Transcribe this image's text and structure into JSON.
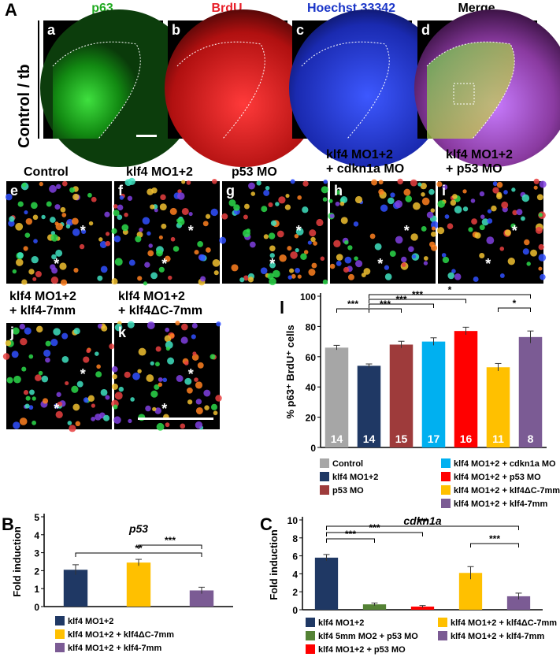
{
  "figure": {
    "panel_A_label": "A",
    "row_label": "Control / tb",
    "channels": [
      {
        "sub": "a",
        "name": "p63",
        "color": "#1faa1f"
      },
      {
        "sub": "b",
        "name": "BrdU",
        "color": "#e8202a"
      },
      {
        "sub": "c",
        "name": "Hoechst 33342",
        "color": "#1a35c8"
      },
      {
        "sub": "d",
        "name": "Merge",
        "color": "#000000"
      }
    ],
    "conditions_row1": [
      {
        "sub": "e",
        "line1": "Control",
        "line2": ""
      },
      {
        "sub": "f",
        "line1": "klf4 MO1+2",
        "line2": ""
      },
      {
        "sub": "g",
        "line1": "p53 MO",
        "line2": ""
      },
      {
        "sub": "h",
        "line1": "klf4 MO1+2",
        "line2": "+ cdkn1a MO"
      },
      {
        "sub": "i",
        "line1": "klf4 MO1+2",
        "line2": "+ p53 MO"
      }
    ],
    "conditions_row2": [
      {
        "sub": "j",
        "line1": "klf4 MO1+2",
        "line2": "+ klf4-7mm"
      },
      {
        "sub": "k",
        "line1": "klf4 MO1+2",
        "line2": "+ klf4ΔC-7mm"
      }
    ]
  },
  "chart_data": [
    {
      "panel": "l",
      "type": "bar",
      "ylabel": "% p63⁺ BrdU⁺ cells",
      "ylim": [
        0,
        100
      ],
      "yticks": [
        0,
        20,
        40,
        60,
        80,
        100
      ],
      "categories": [
        "Control",
        "klf4 MO1+2",
        "p53 MO",
        "klf4 MO1+2 + cdkn1a MO",
        "klf4 MO1+2 + p53 MO",
        "klf4 MO1+2 + klf4ΔC-7mm",
        "klf4 MO1+2 + klf4-7mm"
      ],
      "values": [
        66,
        54,
        68,
        70,
        77,
        53,
        73
      ],
      "errors": [
        1.5,
        1.2,
        2.2,
        2.5,
        2.5,
        2.5,
        4
      ],
      "n_labels": [
        "14",
        "14",
        "15",
        "17",
        "16",
        "11",
        "8"
      ],
      "colors": [
        "#a6a6a6",
        "#1f3864",
        "#9e3b3b",
        "#00b0f0",
        "#ff0000",
        "#ffc000",
        "#7b5b94"
      ],
      "significance": [
        {
          "from": 0,
          "to": 1,
          "label": "***"
        },
        {
          "from": 1,
          "to": 2,
          "label": "***"
        },
        {
          "from": 1,
          "to": 3,
          "label": "***"
        },
        {
          "from": 1,
          "to": 4,
          "label": "***"
        },
        {
          "from": 1,
          "to": 6,
          "label": "*"
        },
        {
          "from": 5,
          "to": 6,
          "label": "*"
        }
      ],
      "legend": [
        "Control",
        "klf4 MO1+2",
        "p53 MO",
        "klf4 MO1+2 + cdkn1a MO",
        "klf4 MO1+2 + p53 MO",
        "klf4 MO1+2 + klf4ΔC-7mm",
        "klf4 MO1+2 + klf4-7mm"
      ]
    },
    {
      "panel": "B",
      "type": "bar",
      "title": "p53",
      "ylabel": "Fold induction",
      "ylim": [
        0,
        5
      ],
      "yticks": [
        0,
        1,
        2,
        3,
        4,
        5
      ],
      "categories": [
        "klf4 MO1+2",
        "klf4 MO1+2 + klf4ΔC-7mm",
        "klf4 MO1+2 + klf4-7mm"
      ],
      "values": [
        2.05,
        2.45,
        0.9
      ],
      "errors": [
        0.28,
        0.18,
        0.18
      ],
      "colors": [
        "#1f3864",
        "#ffc000",
        "#7b5b94"
      ],
      "significance": [
        {
          "from": 0,
          "to": 2,
          "label": "**"
        },
        {
          "from": 1,
          "to": 2,
          "label": "***"
        }
      ],
      "legend": [
        "klf4 MO1+2",
        "klf4 MO1+2 + klf4ΔC-7mm",
        "klf4 MO1+2 + klf4-7mm"
      ]
    },
    {
      "panel": "C",
      "type": "bar",
      "title": "cdkn1a",
      "ylabel": "Fold induction",
      "ylim": [
        0,
        10
      ],
      "yticks": [
        0,
        2,
        4,
        6,
        8,
        10
      ],
      "categories": [
        "klf4 MO1+2",
        "klf4 5mm MO2 + p53 MO",
        "klf4 MO1+2 + p53 MO",
        "klf4 MO1+2 + klf4ΔC-7mm",
        "klf4 MO1+2 + klf4-7mm"
      ],
      "values": [
        5.8,
        0.6,
        0.35,
        4.1,
        1.5
      ],
      "errors": [
        0.35,
        0.15,
        0.12,
        0.7,
        0.35
      ],
      "colors": [
        "#1f3864",
        "#548235",
        "#ff0000",
        "#ffc000",
        "#7b5b94"
      ],
      "significance": [
        {
          "from": 0,
          "to": 1,
          "label": "***"
        },
        {
          "from": 0,
          "to": 2,
          "label": "***"
        },
        {
          "from": 0,
          "to": 4,
          "label": "***"
        },
        {
          "from": 3,
          "to": 4,
          "label": "***"
        }
      ],
      "legend": [
        "klf4 MO1+2",
        "klf4 5mm MO2 + p53 MO",
        "klf4 MO1+2 + p53 MO",
        "klf4 MO1+2 + klf4ΔC-7mm",
        "klf4 MO1+2 + klf4-7mm"
      ]
    }
  ],
  "panel_letters": {
    "A": "A",
    "B": "B",
    "C": "C",
    "l": "l"
  }
}
